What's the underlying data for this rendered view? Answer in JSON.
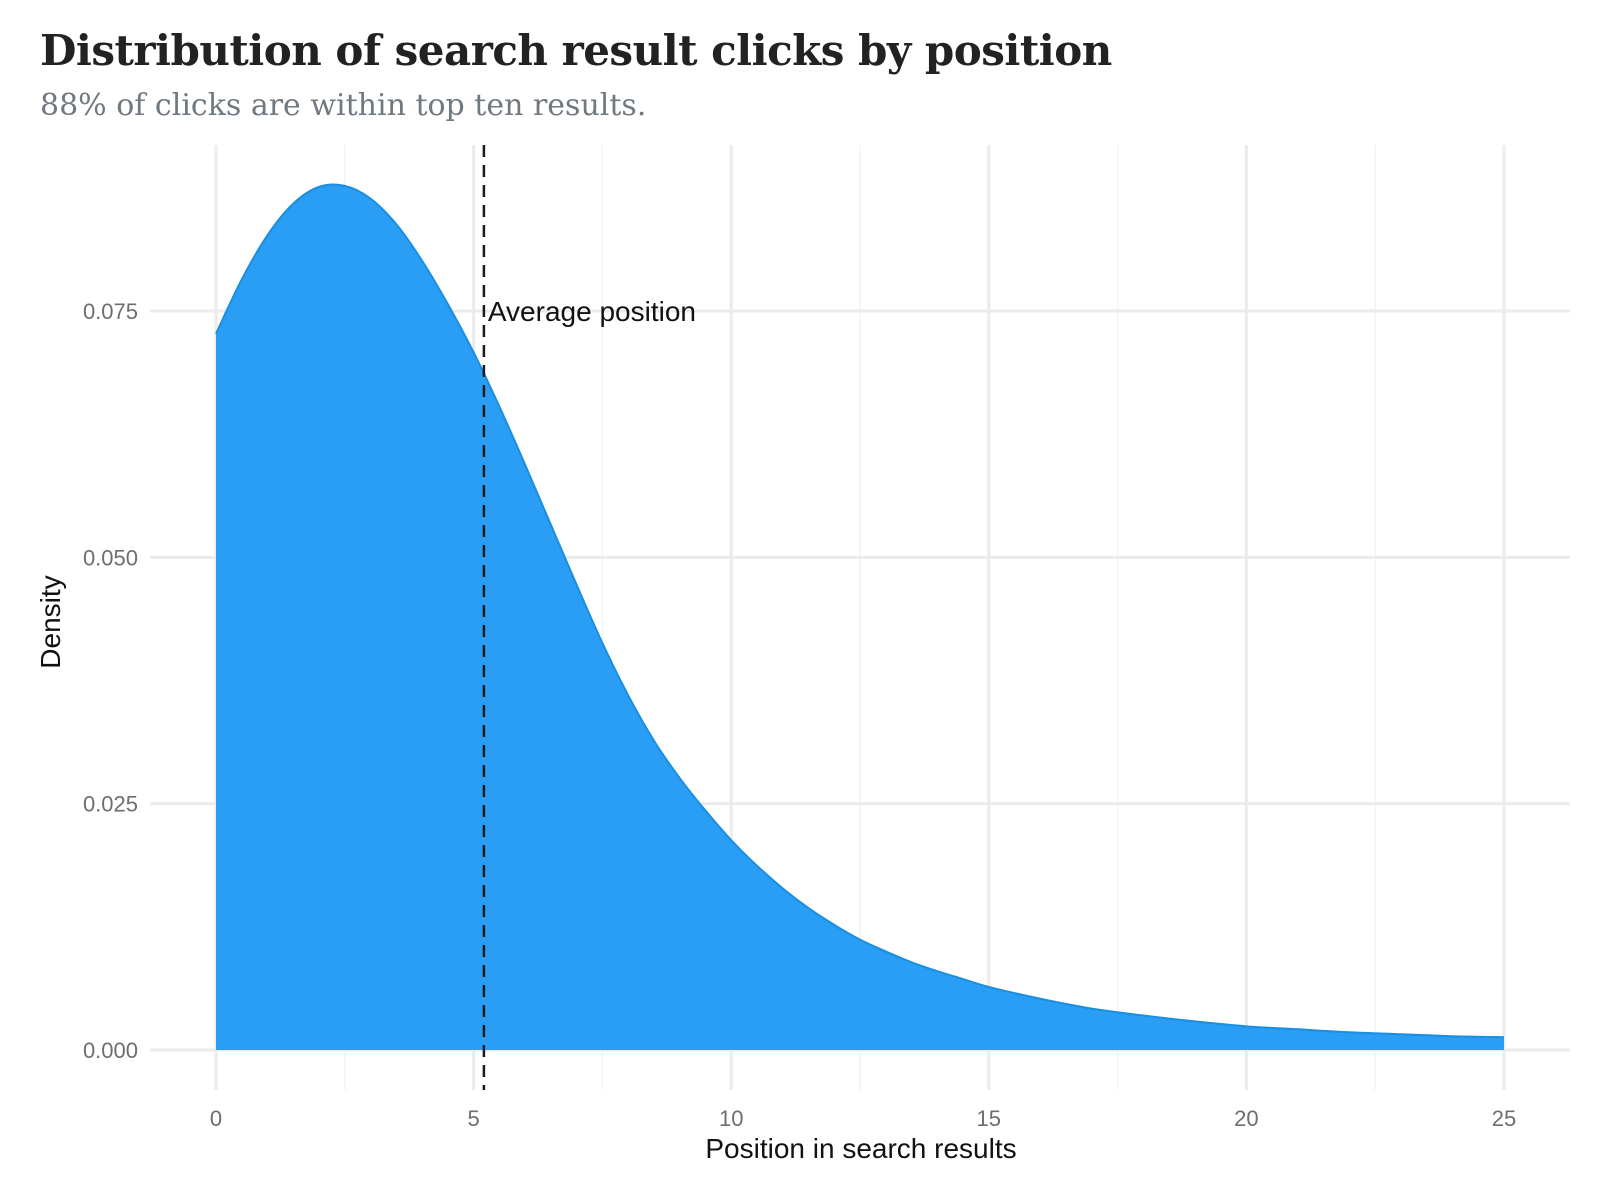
{
  "chart_data": {
    "type": "area",
    "title": "Distribution of search result clicks by position",
    "subtitle": "88% of clicks are within top ten results.",
    "xlabel": "Position in search results",
    "ylabel": "Density",
    "xlim": [
      0,
      25
    ],
    "ylim": [
      0,
      0.09
    ],
    "x_ticks": [
      {
        "value": 0,
        "label": "0"
      },
      {
        "value": 5,
        "label": "5"
      },
      {
        "value": 10,
        "label": "10"
      },
      {
        "value": 15,
        "label": "15"
      },
      {
        "value": 20,
        "label": "20"
      },
      {
        "value": 25,
        "label": "25"
      }
    ],
    "y_ticks": [
      {
        "value": 0.0,
        "label": "0.000"
      },
      {
        "value": 0.025,
        "label": "0.025"
      },
      {
        "value": 0.05,
        "label": "0.050"
      },
      {
        "value": 0.075,
        "label": "0.075"
      }
    ],
    "grid": true,
    "series": [
      {
        "x": [
          0,
          0.5,
          1,
          1.5,
          2,
          2.5,
          3,
          3.5,
          4,
          4.5,
          5,
          5.5,
          6,
          6.5,
          7,
          7.5,
          8,
          8.5,
          9,
          9.5,
          10,
          10.5,
          11,
          11.5,
          12,
          12.5,
          13,
          13.5,
          14,
          14.5,
          15,
          16,
          17,
          18,
          19,
          20,
          21,
          22,
          23,
          24,
          25
        ],
        "y": [
          0.0727,
          0.0782,
          0.0827,
          0.0859,
          0.0876,
          0.0877,
          0.0864,
          0.0838,
          0.0801,
          0.0757,
          0.0708,
          0.0653,
          0.0594,
          0.0533,
          0.0472,
          0.0413,
          0.036,
          0.0314,
          0.0276,
          0.0243,
          0.0213,
          0.0187,
          0.0164,
          0.0144,
          0.0127,
          0.0112,
          0.01,
          0.0089,
          0.008,
          0.0072,
          0.0064,
          0.0052,
          0.0042,
          0.0035,
          0.0029,
          0.0024,
          0.0021,
          0.0018,
          0.0016,
          0.0014,
          0.0013
        ]
      }
    ],
    "annotations": [
      {
        "type": "vline",
        "x": 5.2,
        "label": "Average position",
        "label_y": 0.075
      }
    ],
    "colors": {
      "fill": "#2a9df4",
      "line": "#1a8fe0",
      "grid": "#ebebeb",
      "vline": "#1a1a1a"
    }
  }
}
